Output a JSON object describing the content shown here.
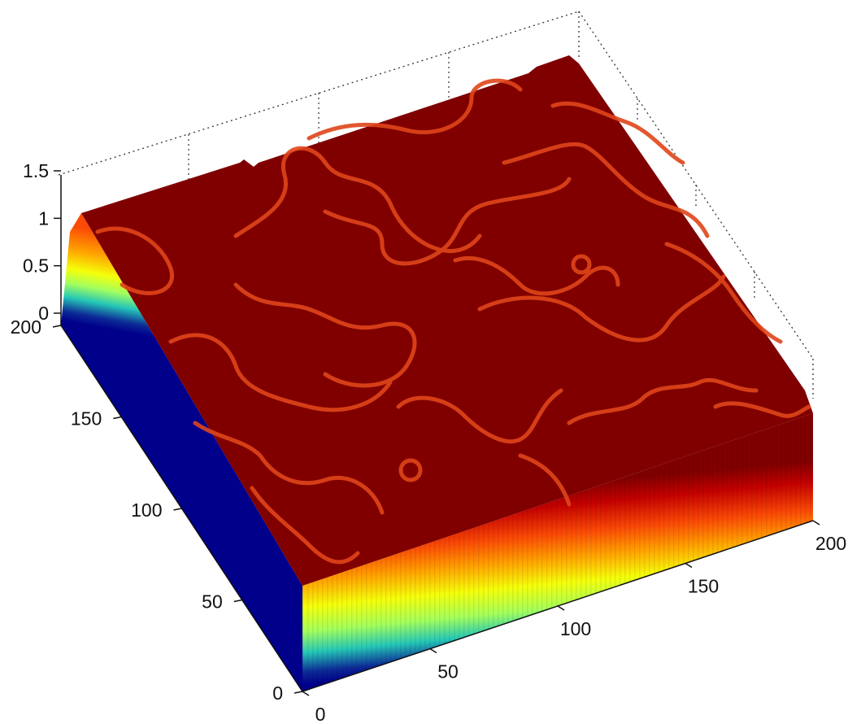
{
  "chart_data": {
    "type": "surface",
    "title": "",
    "xlabel": "",
    "ylabel": "",
    "zlabel": "",
    "grid": "off",
    "box": "on",
    "colormap": "jet",
    "xlim": [
      0,
      200
    ],
    "ylim": [
      0,
      200
    ],
    "zlim": [
      0,
      1.5
    ],
    "x_ticks": [
      "0",
      "50",
      "100",
      "150",
      "200"
    ],
    "y_ticks": [
      "0",
      "50",
      "100",
      "150",
      "200"
    ],
    "z_ticks": [
      "0",
      "0.5",
      "1",
      "1.5"
    ],
    "surface": {
      "plateau_value": 1,
      "base_value": 0,
      "domain_wall_value": 0.8
    }
  },
  "colors": {
    "plateau": "#800000",
    "wall": "#ff5a14",
    "jet_gradient": [
      "#fa4a06",
      "#ffa300",
      "#f5ff0a",
      "#a4ff5c",
      "#25c7b7",
      "#0c2a96",
      "#00008b"
    ]
  }
}
